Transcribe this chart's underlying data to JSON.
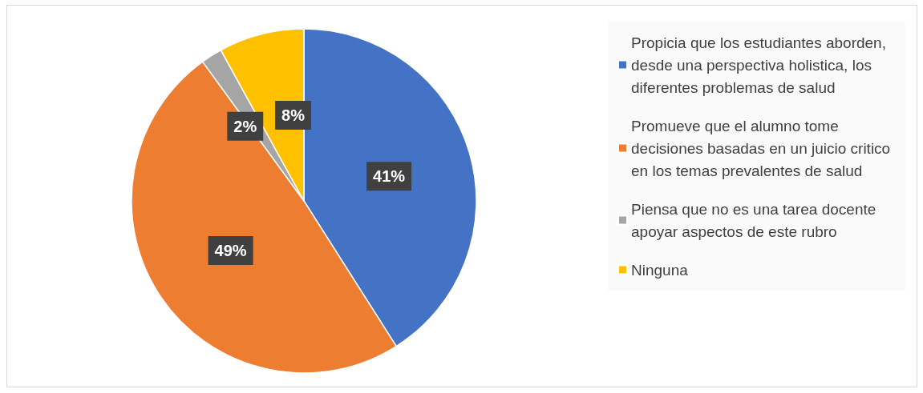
{
  "chart_data": {
    "type": "pie",
    "categories": [
      "Propicia que los estudiantes aborden, desde una perspectiva holistica, los diferentes problemas de salud",
      "Promueve que el alumno tome decisiones basadas en un juicio critico en los temas prevalentes de salud",
      "Piensa que no es una tarea docente apoyar aspectos de este rubro",
      "Ninguna"
    ],
    "values": [
      41,
      49,
      2,
      8
    ],
    "colors": [
      "#4472c4",
      "#ed7d31",
      "#a5a5a5",
      "#ffc000"
    ],
    "value_labels": [
      "41%",
      "49%",
      "2%",
      "8%"
    ],
    "legend": "right"
  }
}
